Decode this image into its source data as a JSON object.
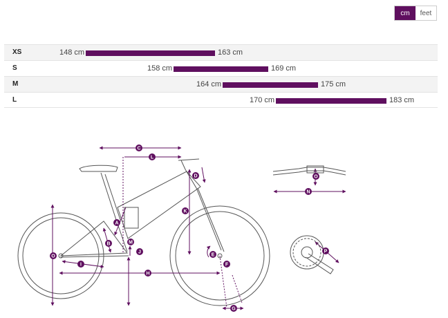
{
  "unit_toggle": {
    "options": [
      "cm",
      "feet"
    ],
    "selected": "cm"
  },
  "accent_color": "#5f0f5f",
  "sizes": [
    {
      "label": "XS",
      "min": "148 cm",
      "max": "163 cm",
      "min_value": 148,
      "max_value": 163
    },
    {
      "label": "S",
      "min": "158 cm",
      "max": "169 cm",
      "min_value": 158,
      "max_value": 169
    },
    {
      "label": "M",
      "min": "164 cm",
      "max": "175 cm",
      "min_value": 164,
      "max_value": 175
    },
    {
      "label": "L",
      "min": "170 cm",
      "max": "183 cm",
      "min_value": 170,
      "max_value": 183
    }
  ],
  "geometry_labels": [
    "A",
    "B",
    "C",
    "D",
    "E",
    "F",
    "G",
    "H",
    "I",
    "J",
    "K",
    "L",
    "M",
    "N",
    "O",
    "P"
  ]
}
